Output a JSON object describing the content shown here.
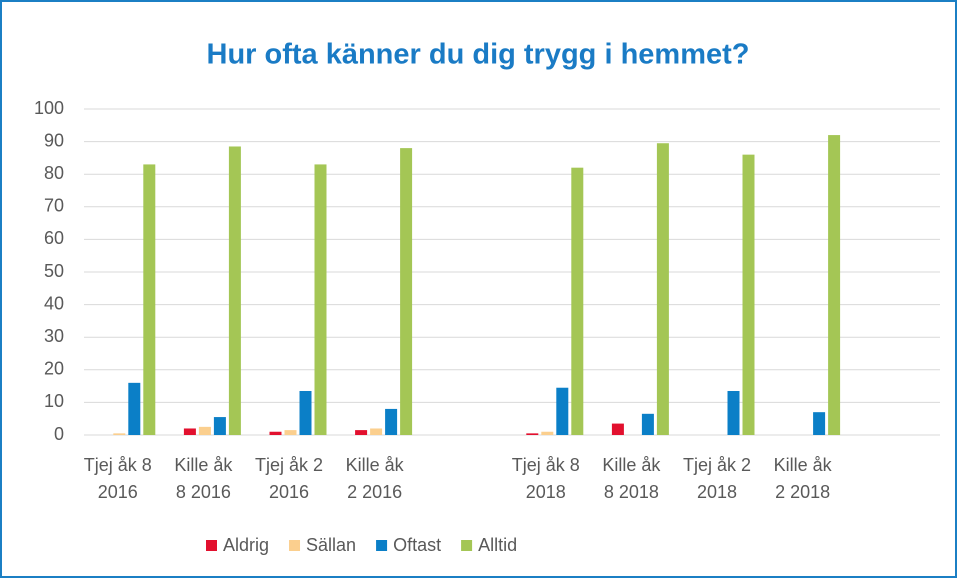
{
  "chart_data": {
    "type": "bar",
    "title": "Hur ofta känner du dig trygg i hemmet?",
    "categories": [
      "Tjej åk 8\n2016",
      "Kille åk\n8 2016",
      "Tjej åk 2\n2016",
      "Kille åk\n2 2016",
      null,
      "Tjej åk 8\n2018",
      "Kille åk\n8 2018",
      "Tjej åk 2\n2018",
      "Kille åk\n2 2018",
      null
    ],
    "series": [
      {
        "name": "Aldrig",
        "color": "#e2102e",
        "values": [
          0,
          2,
          1,
          1.5,
          null,
          0.5,
          3.5,
          0,
          0,
          null
        ]
      },
      {
        "name": "Sällan",
        "color": "#fbcf8e",
        "values": [
          0.5,
          2.5,
          1.5,
          2,
          null,
          1,
          0,
          0,
          0,
          null
        ]
      },
      {
        "name": "Oftast",
        "color": "#0b7fc7",
        "values": [
          16,
          5.5,
          13.5,
          8,
          null,
          14.5,
          6.5,
          13.5,
          7,
          null
        ]
      },
      {
        "name": "Alltid",
        "color": "#a4c655",
        "values": [
          83,
          88.5,
          83,
          88,
          null,
          82,
          89.5,
          86,
          92,
          null
        ]
      }
    ],
    "ylim": [
      0,
      100
    ],
    "yticks": [
      0,
      10,
      20,
      30,
      40,
      50,
      60,
      70,
      80,
      90,
      100
    ],
    "grid": true,
    "legend": "bottom"
  }
}
